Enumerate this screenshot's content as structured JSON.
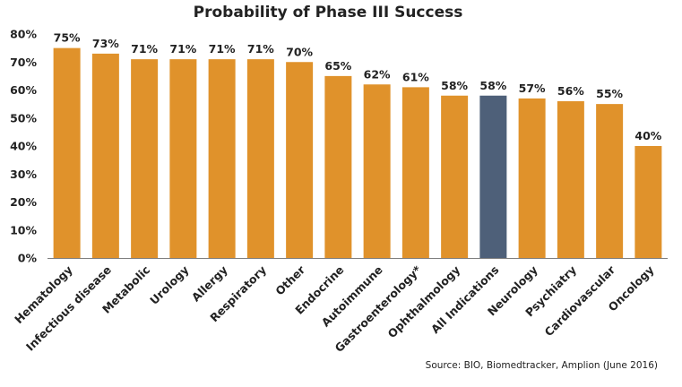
{
  "chart_data": {
    "type": "bar",
    "title": "Probability of Phase III Success",
    "xlabel": "",
    "ylabel": "",
    "ylim": [
      0,
      80
    ],
    "yticks": [
      0,
      10,
      20,
      30,
      40,
      50,
      60,
      70,
      80
    ],
    "y_tick_suffix": "%",
    "grid": false,
    "legend": "none",
    "categories": [
      "Hematology",
      "Infectious disease",
      "Metabolic",
      "Urology",
      "Allergy",
      "Respiratory",
      "Other",
      "Endocrine",
      "Autoimmune",
      "Gastroenterology*",
      "Ophthalmology",
      "All Indications",
      "Neurology",
      "Psychiatry",
      "Cardiovascular",
      "Oncology"
    ],
    "values": [
      75,
      73,
      71,
      71,
      71,
      71,
      70,
      65,
      62,
      61,
      58,
      58,
      57,
      56,
      55,
      40
    ],
    "data_labels": [
      "75%",
      "73%",
      "71%",
      "71%",
      "71%",
      "71%",
      "70%",
      "65%",
      "62%",
      "61%",
      "58%",
      "58%",
      "57%",
      "56%",
      "55%",
      "40%"
    ],
    "highlight_category": "All Indications",
    "colors": {
      "bar": "#E0922B",
      "highlight": "#4E6079",
      "axis": "#7F7F7F",
      "text": "#222222"
    },
    "source": "Source: BIO, Biomedtracker, Amplion (June 2016)"
  }
}
